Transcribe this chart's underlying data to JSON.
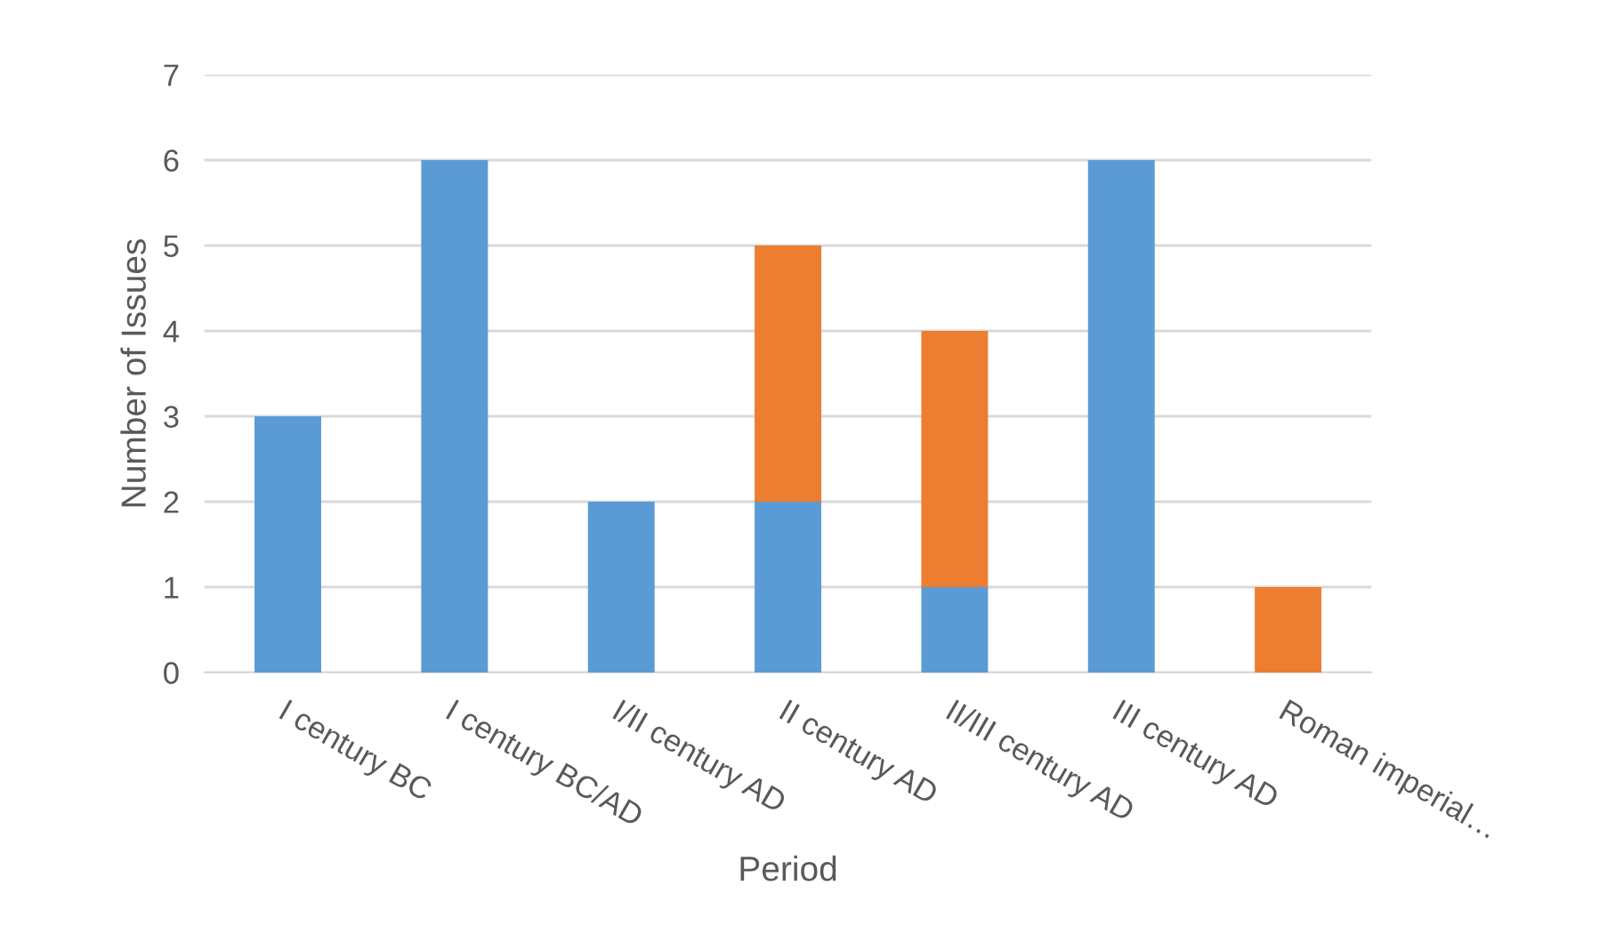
{
  "chart_data": {
    "type": "bar",
    "stacked": true,
    "xlabel": "Period",
    "ylabel": "Number of Issues",
    "categories": [
      "I century BC",
      "I century BC/AD",
      "I/II century AD",
      "II century AD",
      "II/III century AD",
      "III century AD",
      "Roman imperial…"
    ],
    "series": [
      {
        "color": "#5b9bd5",
        "values": [
          3,
          6,
          2,
          2,
          1,
          6,
          0
        ]
      },
      {
        "color": "#ed7d31",
        "values": [
          0,
          0,
          0,
          3,
          3,
          0,
          1
        ]
      }
    ],
    "ylim": [
      0,
      7
    ],
    "yticks": [
      0,
      1,
      2,
      3,
      4,
      5,
      6,
      7
    ],
    "grid": "y",
    "legend": false
  }
}
